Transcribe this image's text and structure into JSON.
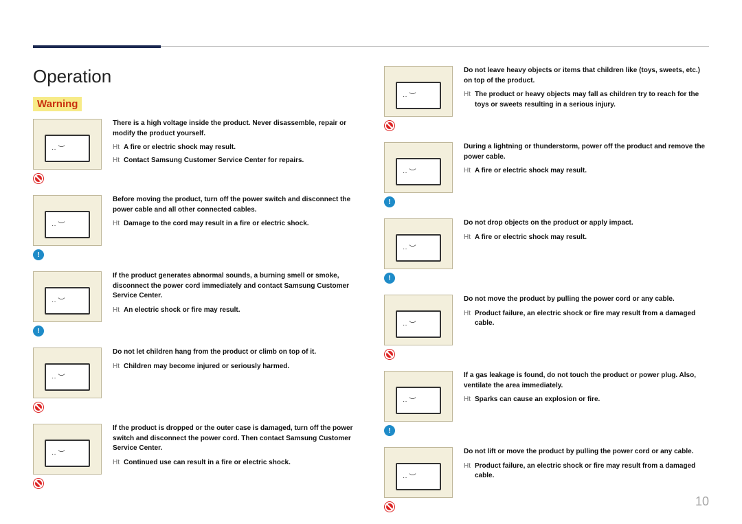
{
  "title": "Operation",
  "warning_label": "Warning",
  "page_number": "10",
  "colors": {
    "rule_thick": "#1a2850",
    "rule_thin": "#bfbfbf",
    "warning_text": "#c8300e",
    "warning_bg": "#f7eb88",
    "thumb_bg": "#f3efdc",
    "thumb_border": "#bfb79a",
    "ind_red": "#d22",
    "ind_blue": "#1e8bc8",
    "pagenum": "#a6a6a6"
  },
  "left": [
    {
      "indicators": [
        "red"
      ],
      "main": "There is a high voltage inside the product. Never disassemble, repair or modify the product yourself.",
      "subs": [
        "A fire or electric shock may result.",
        "Contact Samsung Customer Service Center for repairs."
      ]
    },
    {
      "indicators": [
        "blue"
      ],
      "main": "Before moving the product, turn off the power switch and disconnect the power cable and all other connected cables.",
      "subs": [
        "Damage to the cord may result in a fire or electric shock."
      ]
    },
    {
      "indicators": [
        "blue"
      ],
      "main": "If the product generates abnormal sounds, a burning smell or smoke, disconnect the power cord immediately and contact Samsung Customer Service Center.",
      "subs": [
        "An electric shock or fire may result."
      ]
    },
    {
      "indicators": [
        "red"
      ],
      "main": "Do not let children hang from the product or climb on top of it.",
      "subs": [
        "Children may become injured or seriously harmed."
      ]
    },
    {
      "indicators": [
        "red"
      ],
      "main": "If the product is dropped or the outer case is damaged, turn off the power switch and disconnect the power cord. Then contact Samsung Customer Service Center.",
      "subs": [
        "Continued use can result in a fire or electric shock."
      ]
    }
  ],
  "right": [
    {
      "indicators": [
        "red"
      ],
      "main": "Do not leave heavy objects or items that children like (toys, sweets, etc.) on top of the product.",
      "subs": [
        "The product or heavy objects may fall as children try to reach for the toys or sweets resulting in a serious injury."
      ]
    },
    {
      "indicators": [
        "blue"
      ],
      "main": "During a lightning or thunderstorm, power off the product and remove the power cable.",
      "subs": [
        "A fire or electric shock may result."
      ]
    },
    {
      "indicators": [
        "blue"
      ],
      "main": "Do not drop objects on the product or apply impact.",
      "subs": [
        "A fire or electric shock may result."
      ]
    },
    {
      "indicators": [
        "red"
      ],
      "main": "Do not move the product by pulling the power cord or any cable.",
      "subs": [
        "Product failure, an electric shock or fire may result from a damaged cable."
      ]
    },
    {
      "indicators": [
        "blue"
      ],
      "main": "If a gas leakage is found, do not touch the product or power plug. Also, ventilate the area immediately.",
      "subs": [
        "Sparks can cause an explosion or fire."
      ]
    },
    {
      "indicators": [
        "red"
      ],
      "main": "Do not lift or move the product by pulling the power cord or any cable.",
      "subs": [
        "Product failure, an electric shock or fire may result from a damaged cable."
      ]
    }
  ],
  "bullet_char": "Ht"
}
